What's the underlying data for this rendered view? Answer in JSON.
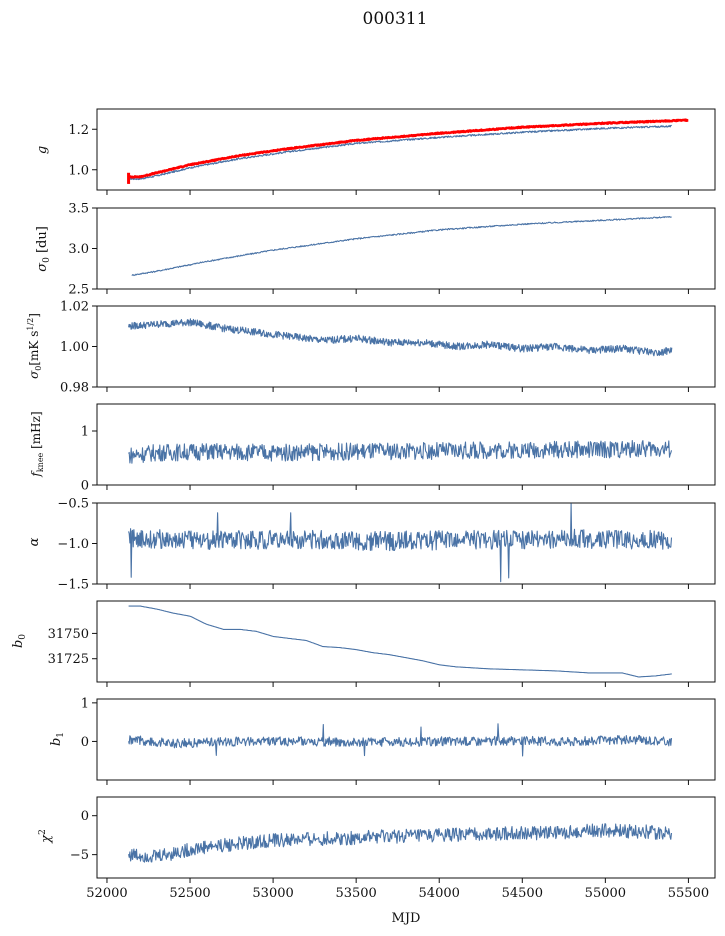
{
  "figure": {
    "title": "000311",
    "xlabel": "MJD",
    "x_ticks": [
      52000,
      52500,
      53000,
      53500,
      54000,
      54500,
      55000,
      55500
    ],
    "xlim": [
      51940,
      55660
    ]
  },
  "colors": {
    "series": "#4a73a6",
    "overlay": "#ff0000",
    "axis": "#111111"
  },
  "chart_data": [
    {
      "type": "line",
      "ylabel": "g",
      "ylim": [
        0.9,
        1.3
      ],
      "yticks": [
        1.0,
        1.2
      ],
      "ytick_labels": [
        "1.0",
        "1.2"
      ],
      "series": [
        {
          "color": "#4a73a6",
          "x": [
            52130,
            52200,
            52300,
            52500,
            52800,
            53100,
            53500,
            54000,
            54500,
            55000,
            55400
          ],
          "y": [
            0.955,
            0.955,
            0.97,
            1.01,
            1.055,
            1.09,
            1.13,
            1.16,
            1.185,
            1.205,
            1.215
          ]
        },
        {
          "color": "#ff0000",
          "x": [
            52130,
            52200,
            52300,
            52500,
            52800,
            53100,
            53500,
            54000,
            54500,
            55000,
            55500
          ],
          "y": [
            0.965,
            0.965,
            0.985,
            1.025,
            1.07,
            1.105,
            1.145,
            1.18,
            1.21,
            1.23,
            1.245
          ]
        }
      ]
    },
    {
      "type": "line",
      "ylabel": "σ0 [du]",
      "ylim": [
        2.5,
        3.5
      ],
      "yticks": [
        2.5,
        3.0,
        3.5
      ],
      "ytick_labels": [
        "2.5",
        "3.0",
        "3.5"
      ],
      "series": [
        {
          "color": "#4a73a6",
          "x": [
            52150,
            52300,
            52600,
            53000,
            53500,
            54000,
            54500,
            55000,
            55400
          ],
          "y": [
            2.67,
            2.72,
            2.84,
            2.98,
            3.12,
            3.23,
            3.3,
            3.35,
            3.39
          ]
        }
      ]
    },
    {
      "type": "line",
      "ylabel": "σ0[mK s1/2]",
      "ylim": [
        0.98,
        1.02
      ],
      "yticks": [
        0.98,
        1.0,
        1.02
      ],
      "ytick_labels": [
        "0.98",
        "1.00",
        "1.02"
      ],
      "series": [
        {
          "color": "#4a73a6",
          "x": [
            52130,
            52300,
            52500,
            52700,
            52900,
            53100,
            53300,
            53500,
            53700,
            53900,
            54100,
            54300,
            54500,
            54700,
            54900,
            55100,
            55300,
            55400
          ],
          "y": [
            1.01,
            1.011,
            1.012,
            1.009,
            1.007,
            1.005,
            1.003,
            1.004,
            1.002,
            1.002,
            1.0,
            1.001,
            0.999,
            1.0,
            0.998,
            0.999,
            0.997,
            0.998
          ]
        }
      ]
    },
    {
      "type": "line",
      "ylabel": "fknee [mHz]",
      "ylim": [
        0,
        1.5
      ],
      "yticks": [
        0,
        1
      ],
      "ytick_labels": [
        "0",
        "1"
      ],
      "series": [
        {
          "color": "#4a73a6",
          "x": [
            52130,
            52300,
            52600,
            53000,
            53500,
            54000,
            54500,
            55000,
            55400
          ],
          "y": [
            0.55,
            0.6,
            0.62,
            0.6,
            0.62,
            0.63,
            0.65,
            0.66,
            0.67
          ]
        }
      ]
    },
    {
      "type": "line",
      "ylabel": "α",
      "ylim": [
        -1.5,
        -0.5
      ],
      "yticks": [
        -1.5,
        -1.0,
        -0.5
      ],
      "ytick_labels": [
        "−1.5",
        "−1.0",
        "−0.5"
      ],
      "series": [
        {
          "color": "#4a73a6",
          "x": [
            52130,
            52400,
            52800,
            53200,
            53600,
            54000,
            54400,
            54800,
            55200,
            55400
          ],
          "y": [
            -0.93,
            -0.95,
            -0.96,
            -0.95,
            -0.97,
            -0.96,
            -0.95,
            -0.94,
            -0.96,
            -0.95
          ]
        }
      ]
    },
    {
      "type": "line",
      "ylabel": "b0",
      "ylim": [
        31702,
        31782
      ],
      "yticks": [
        31725,
        31750
      ],
      "ytick_labels": [
        "31725",
        "31750"
      ],
      "series": [
        {
          "color": "#4a73a6",
          "x": [
            52130,
            52200,
            52300,
            52400,
            52500,
            52600,
            52700,
            52800,
            52900,
            53000,
            53100,
            53200,
            53300,
            53400,
            53500,
            53600,
            53700,
            53800,
            53900,
            54000,
            54100,
            54300,
            54500,
            54700,
            54900,
            55100,
            55200,
            55300,
            55400
          ],
          "y": [
            31777,
            31777,
            31774,
            31770,
            31767,
            31759,
            31754,
            31754,
            31752,
            31747,
            31745,
            31743,
            31737,
            31736,
            31734,
            31731,
            31729,
            31726,
            31723,
            31719,
            31717,
            31715,
            31714,
            31713,
            31711,
            31711,
            31707,
            31708,
            31710
          ]
        }
      ]
    },
    {
      "type": "line",
      "ylabel": "b1",
      "ylim": [
        -1.0,
        1.1
      ],
      "yticks": [
        0,
        1
      ],
      "ytick_labels": [
        "0",
        "1"
      ],
      "series": [
        {
          "color": "#4a73a6",
          "x": [
            52130,
            52400,
            52800,
            53200,
            53600,
            54000,
            54400,
            54800,
            55200,
            55400
          ],
          "y": [
            0.05,
            -0.05,
            0.0,
            0.0,
            -0.02,
            0.0,
            0.02,
            0.0,
            0.05,
            0.0
          ]
        }
      ]
    },
    {
      "type": "line",
      "ylabel": "χ2",
      "ylim": [
        -8,
        2.4
      ],
      "yticks": [
        -5,
        0
      ],
      "ytick_labels": [
        "−5",
        "0"
      ],
      "series": [
        {
          "color": "#4a73a6",
          "x": [
            52130,
            52300,
            52600,
            53000,
            53400,
            53800,
            54200,
            54600,
            55000,
            55400
          ],
          "y": [
            -5.0,
            -5.2,
            -4.0,
            -3.2,
            -2.9,
            -2.6,
            -2.4,
            -2.2,
            -1.9,
            -2.2
          ]
        }
      ]
    }
  ]
}
